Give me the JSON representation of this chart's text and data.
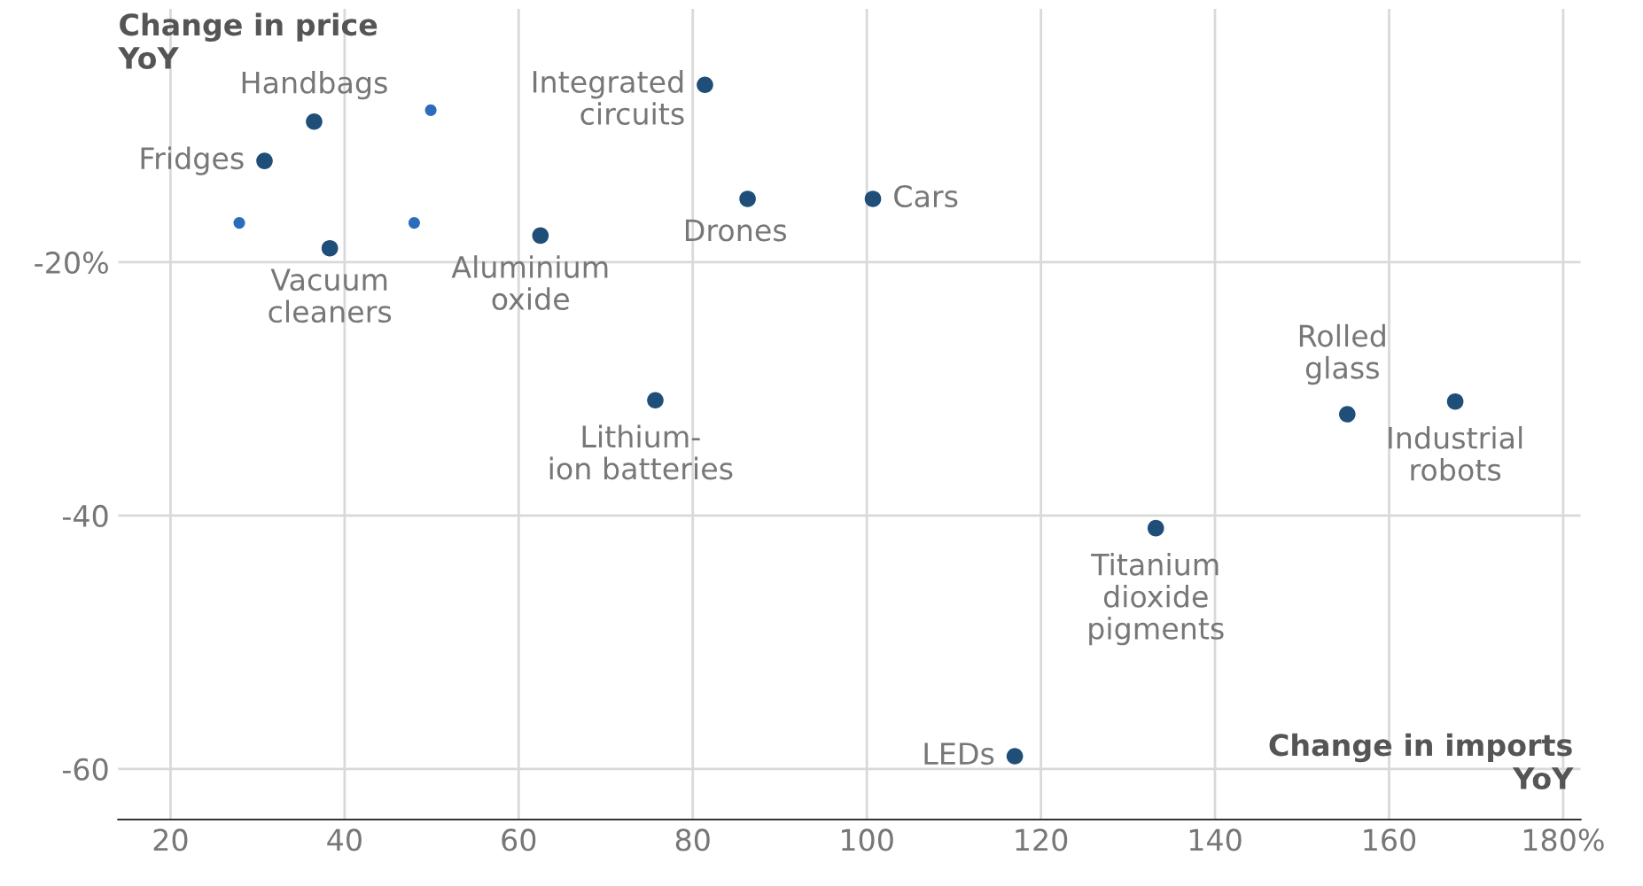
{
  "chart_data": {
    "type": "scatter",
    "ylabel": "Change in price\nYoY",
    "xlabel": "Change in imports\nYoY",
    "series": [
      {
        "color": "#1f4e79",
        "x": [
          36.5,
          30.8,
          38.3,
          62.5,
          81.4,
          86.3,
          100.7,
          75.7,
          133.2,
          117.0,
          155.2,
          167.6
        ],
        "values": [
          -8.9,
          -12.0,
          -18.9,
          -17.9,
          -6.0,
          -15.0,
          -15.0,
          -30.9,
          -41.0,
          -59.0,
          -32.0,
          -31.0
        ]
      },
      {
        "color": "#2a6ebb",
        "x": [
          49.9,
          27.9,
          48.0
        ],
        "values": [
          -8.0,
          -16.9,
          -16.9
        ]
      }
    ],
    "annotations": [
      {
        "text": "Handbags",
        "x": 36.5,
        "y": -8.9
      },
      {
        "text": "Fridges",
        "x": 30.8,
        "y": -12.0
      },
      {
        "text": "Vacuum\ncleaners",
        "x": 38.3,
        "y": -18.9
      },
      {
        "text": "Aluminium\noxide",
        "x": 62.5,
        "y": -17.9
      },
      {
        "text": "Integrated\ncircuits",
        "x": 81.4,
        "y": -6.0
      },
      {
        "text": "Drones",
        "x": 86.3,
        "y": -15.0
      },
      {
        "text": "Cars",
        "x": 100.7,
        "y": -15.0
      },
      {
        "text": "Lithium-\nion batteries",
        "x": 75.7,
        "y": -30.9
      },
      {
        "text": "Titanium\ndioxide\npigments",
        "x": 133.2,
        "y": -41.0
      },
      {
        "text": "LEDs",
        "x": 117.0,
        "y": -59.0
      },
      {
        "text": "Rolled\nglass",
        "x": 155.2,
        "y": -32.0
      },
      {
        "text": "Industrial\nrobots",
        "x": 167.6,
        "y": -31.0
      }
    ],
    "xlim": [
      14,
      182
    ],
    "ylim": [
      -64,
      0
    ],
    "xticks": [
      20,
      40,
      60,
      80,
      100,
      120,
      140,
      160,
      {
        "value": 180,
        "label": "180%"
      }
    ],
    "yticks": [
      {
        "value": -20,
        "label": "-20%"
      },
      -40,
      -60
    ],
    "grid": true,
    "legend": false,
    "marker": "circle"
  }
}
